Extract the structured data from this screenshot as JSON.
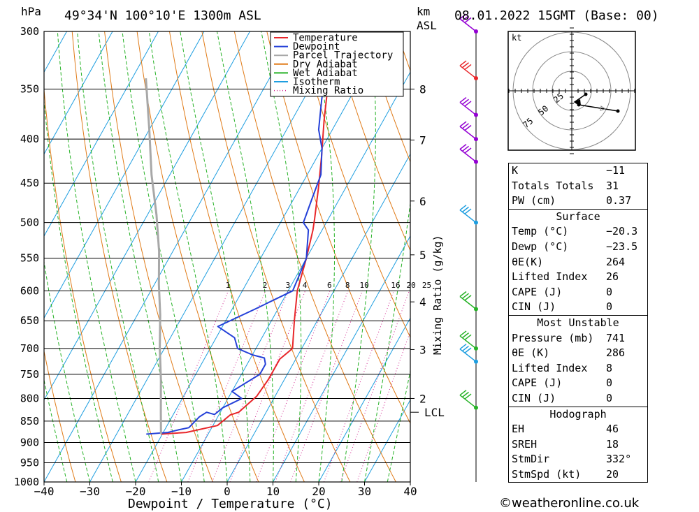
{
  "header": {
    "hpa_label": "hPa",
    "location": "49°34'N  100°10'E  1300m  ASL",
    "km_label": "km",
    "asl_label": "ASL",
    "datetime": "08.01.2022  15GMT  (Base: 00)"
  },
  "chart_data": {
    "type": "line",
    "xlabel": "Dewpoint / Temperature (°C)",
    "ylabel": "hPa",
    "xlim": [
      -40,
      40
    ],
    "ylim": [
      1000,
      300
    ],
    "y_scale": "log",
    "x_ticks": [
      "−40",
      "−30",
      "−20",
      "−10",
      "0",
      "10",
      "20",
      "30",
      "40"
    ],
    "pressure_ticks": [
      300,
      350,
      400,
      450,
      500,
      550,
      600,
      650,
      700,
      750,
      800,
      850,
      900,
      950,
      1000
    ],
    "km_ticks": [
      {
        "label": "8",
        "p": 350
      },
      {
        "label": "7",
        "p": 401
      },
      {
        "label": "6",
        "p": 472
      },
      {
        "label": "5",
        "p": 545
      },
      {
        "label": "4",
        "p": 618
      },
      {
        "label": "3",
        "p": 702
      },
      {
        "label": "2",
        "p": 800
      }
    ],
    "lcl_label": "LCL",
    "lcl_pressure": 830,
    "mixing_ratio_title": "Mixing Ratio (g/kg)",
    "mixing_ratio_labels": [
      "1",
      "2",
      "3",
      "4",
      "6",
      "8",
      "10",
      "16",
      "20",
      "25"
    ],
    "legend": [
      {
        "name": "Temperature",
        "color": "#e8262a",
        "dotted": false
      },
      {
        "name": "Dewpoint",
        "color": "#2440d8",
        "dotted": false
      },
      {
        "name": "Parcel Trajectory",
        "color": "#a8a8a8",
        "dotted": false
      },
      {
        "name": "Dry Adiabat",
        "color": "#e07b18",
        "dotted": false
      },
      {
        "name": "Wet Adiabat",
        "color": "#26b226",
        "dotted": false
      },
      {
        "name": "Isotherm",
        "color": "#1e9ee0",
        "dotted": false
      },
      {
        "name": "Mixing Ratio",
        "color": "#d0208c",
        "dotted": true
      }
    ],
    "series": [
      {
        "name": "Temperature",
        "color": "#e8262a",
        "points": [
          [
            -20.3,
            880
          ],
          [
            -15,
            876
          ],
          [
            -9,
            860
          ],
          [
            -7.5,
            836
          ],
          [
            -6,
            830
          ],
          [
            -4,
            795
          ],
          [
            -3.5,
            760
          ],
          [
            -3.5,
            720
          ],
          [
            -2,
            700
          ],
          [
            -5,
            650
          ],
          [
            -8,
            600
          ],
          [
            -10,
            550
          ],
          [
            -12,
            510
          ],
          [
            -13,
            495
          ],
          [
            -16,
            455
          ],
          [
            -19,
            420
          ],
          [
            -23,
            380
          ],
          [
            -26,
            350
          ],
          [
            -30,
            320
          ],
          [
            -31,
            310
          ],
          [
            -31,
            300
          ]
        ]
      },
      {
        "name": "Dewpoint",
        "color": "#2440d8",
        "points": [
          [
            -23.5,
            880
          ],
          [
            -19,
            876
          ],
          [
            -17,
            870
          ],
          [
            -15,
            865
          ],
          [
            -14,
            840
          ],
          [
            -13,
            830
          ],
          [
            -11,
            835
          ],
          [
            -10,
            820
          ],
          [
            -7,
            800
          ],
          [
            -10,
            785
          ],
          [
            -6,
            750
          ],
          [
            -6,
            730
          ],
          [
            -7,
            718
          ],
          [
            -10,
            712
          ],
          [
            -14,
            700
          ],
          [
            -16,
            680
          ],
          [
            -21,
            660
          ],
          [
            -15,
            630
          ],
          [
            -9,
            600
          ],
          [
            -10,
            550
          ],
          [
            -13,
            510
          ],
          [
            -15,
            500
          ],
          [
            -16,
            470
          ],
          [
            -17,
            440
          ],
          [
            -20,
            410
          ],
          [
            -23,
            390
          ],
          [
            -26,
            360
          ],
          [
            -29,
            330
          ],
          [
            -31,
            310
          ],
          [
            -32,
            300
          ]
        ]
      },
      {
        "name": "Parcel Trajectory",
        "color": "#a8a8a8",
        "points": [
          [
            -20.3,
            880
          ],
          [
            -23,
            830
          ],
          [
            -27,
            760
          ],
          [
            -31,
            700
          ],
          [
            -35,
            640
          ],
          [
            -39,
            590
          ],
          [
            -43,
            540
          ],
          [
            -48,
            490
          ],
          [
            -54,
            440
          ],
          [
            -60,
            390
          ],
          [
            -67,
            340
          ]
        ]
      }
    ],
    "wind_barbs": [
      {
        "p": 300,
        "color": "#9400d3"
      },
      {
        "p": 340,
        "color": "#e8262a"
      },
      {
        "p": 375,
        "color": "#9400d3"
      },
      {
        "p": 400,
        "color": "#9400d3"
      },
      {
        "p": 425,
        "color": "#9400d3"
      },
      {
        "p": 500,
        "color": "#1e9ee0"
      },
      {
        "p": 630,
        "color": "#26b226"
      },
      {
        "p": 700,
        "color": "#26b226"
      },
      {
        "p": 725,
        "color": "#1e9ee0"
      },
      {
        "p": 820,
        "color": "#26b226"
      }
    ]
  },
  "hodograph": {
    "unit_label": "kt",
    "ring_labels": [
      "25",
      "50",
      "75"
    ]
  },
  "indices": {
    "rows": [
      {
        "k": "K",
        "v": "−11"
      },
      {
        "k": "Totals Totals",
        "v": "31"
      },
      {
        "k": "PW (cm)",
        "v": "0.37"
      }
    ]
  },
  "surface": {
    "title": "Surface",
    "rows": [
      {
        "k": "Temp (°C)",
        "v": "−20.3"
      },
      {
        "k": "Dewp (°C)",
        "v": "−23.5"
      },
      {
        "k": "θE(K)",
        "v": "264"
      },
      {
        "k": "Lifted Index",
        "v": "26"
      },
      {
        "k": "CAPE (J)",
        "v": "0"
      },
      {
        "k": "CIN (J)",
        "v": "0"
      }
    ]
  },
  "most_unstable": {
    "title": "Most Unstable",
    "rows": [
      {
        "k": "Pressure (mb)",
        "v": "741"
      },
      {
        "k": "θE (K)",
        "v": "286"
      },
      {
        "k": "Lifted Index",
        "v": "8"
      },
      {
        "k": "CAPE (J)",
        "v": "0"
      },
      {
        "k": "CIN (J)",
        "v": "0"
      }
    ]
  },
  "hodograph_stats": {
    "title": "Hodograph",
    "rows": [
      {
        "k": "EH",
        "v": "46"
      },
      {
        "k": "SREH",
        "v": "18"
      },
      {
        "k": "StmDir",
        "v": "332°"
      },
      {
        "k": "StmSpd (kt)",
        "v": "20"
      }
    ]
  },
  "footer": {
    "copyright_icon": "copyright-icon",
    "site": "©weatheronline.co.uk"
  }
}
